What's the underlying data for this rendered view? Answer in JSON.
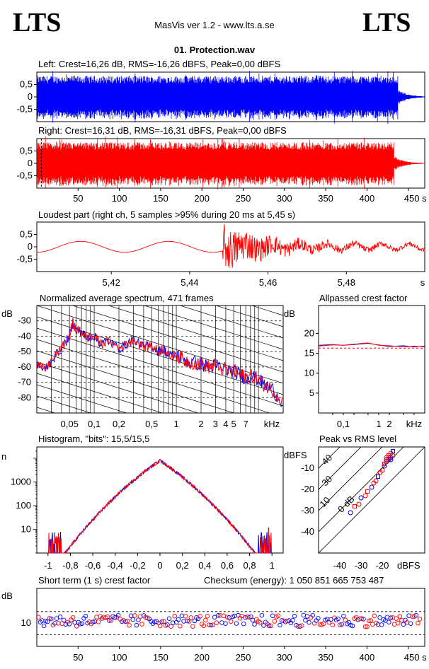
{
  "header": {
    "logo_left": "LTS",
    "logo_right": "LTS",
    "app_title": "MasVis ver 1.2 - www.lts.a.se",
    "file_title": "01. Protection.wav"
  },
  "colors": {
    "left": "#0000ff",
    "right": "#ff0000",
    "axis": "#000000"
  },
  "chart_data": [
    {
      "id": "left",
      "type": "area",
      "title": "Left: Crest=16,26 dB, RMS=-16,26 dBFS, Peak=0,00 dBFS",
      "yticks": [
        "0,5",
        "0",
        "-0,5"
      ],
      "ylim": [
        -1,
        1
      ],
      "xlim": [
        0,
        465
      ],
      "envelope": {
        "body_end_s": 433,
        "tail_end_s": 465,
        "amplitude": 0.8
      }
    },
    {
      "id": "right",
      "type": "area",
      "title": "Right: Crest=16,31 dB, RMS=-16,31 dBFS, Peak=0,00 dBFS",
      "yticks": [
        "0,5",
        "0",
        "-0,5"
      ],
      "xticks": [
        "50",
        "100",
        "150",
        "200",
        "250",
        "300",
        "350",
        "400",
        "450 s"
      ],
      "xtick_values": [
        50,
        100,
        150,
        200,
        250,
        300,
        350,
        400,
        450
      ],
      "ylim": [
        -1,
        1
      ],
      "xlim": [
        0,
        470
      ],
      "marker_s": 5.45
    },
    {
      "id": "loudest",
      "type": "line",
      "title": "Loudest part (right ch, 5 samples >95% during 20 ms at 5,45 s)",
      "yticks": [
        "0,5",
        "0",
        "-0,5"
      ],
      "xticks": [
        "5,42",
        "5,44",
        "5,46",
        "5,48",
        "s"
      ],
      "xtick_values": [
        5.42,
        5.44,
        5.46,
        5.48
      ],
      "xlim": [
        5.401,
        5.5
      ],
      "ylim": [
        -1,
        1
      ]
    },
    {
      "id": "spectrum",
      "type": "line",
      "title": "Normalized average spectrum, 471 frames",
      "ylabel": "dB",
      "yticks": [
        "-30",
        "-40",
        "-50",
        "-60",
        "-70",
        "-80"
      ],
      "ytick_values": [
        -30,
        -40,
        -50,
        -60,
        -70,
        -80
      ],
      "xticks": [
        "0,05",
        "0,1",
        "0,2",
        "0,5",
        "1",
        "2",
        "3",
        "4",
        "5",
        "7",
        "kHz"
      ],
      "xtick_values": [
        0.05,
        0.1,
        0.2,
        0.5,
        1,
        2,
        3,
        4,
        5,
        7
      ],
      "xlim_khz": [
        0.02,
        20
      ],
      "ylim": [
        -90,
        -20
      ],
      "points_khz_db": [
        [
          0.02,
          -58
        ],
        [
          0.025,
          -62
        ],
        [
          0.03,
          -56
        ],
        [
          0.04,
          -48
        ],
        [
          0.05,
          -40
        ],
        [
          0.055,
          -31
        ],
        [
          0.06,
          -36
        ],
        [
          0.07,
          -37
        ],
        [
          0.08,
          -41
        ],
        [
          0.1,
          -40
        ],
        [
          0.12,
          -45
        ],
        [
          0.15,
          -43
        ],
        [
          0.2,
          -48
        ],
        [
          0.25,
          -45
        ],
        [
          0.3,
          -42
        ],
        [
          0.4,
          -47
        ],
        [
          0.5,
          -46
        ],
        [
          0.6,
          -50
        ],
        [
          0.7,
          -48
        ],
        [
          0.8,
          -53
        ],
        [
          1,
          -52
        ],
        [
          1.2,
          -55
        ],
        [
          1.5,
          -57
        ],
        [
          2,
          -58
        ],
        [
          2.5,
          -60
        ],
        [
          3,
          -59
        ],
        [
          4,
          -62
        ],
        [
          5,
          -63
        ],
        [
          6,
          -65
        ],
        [
          7,
          -67
        ],
        [
          8,
          -66
        ],
        [
          10,
          -68
        ],
        [
          12,
          -72
        ],
        [
          15,
          -75
        ],
        [
          20,
          -83
        ]
      ]
    },
    {
      "id": "allpassed",
      "type": "line",
      "title": "Allpassed crest factor",
      "ylabel": "dB",
      "yticks": [
        "20",
        "15",
        "10",
        "5"
      ],
      "ytick_values": [
        20,
        15,
        10,
        5
      ],
      "xticks": [
        "0,1",
        "1",
        "2",
        "kHz"
      ],
      "xtick_values": [
        0.1,
        1,
        2
      ],
      "ylim": [
        0,
        27
      ],
      "reference_db": 16.3,
      "series": [
        {
          "x": [
            0.02,
            0.05,
            0.1,
            0.2,
            0.5,
            1,
            2,
            5,
            10,
            20
          ],
          "values": [
            17.0,
            17.2,
            17.0,
            17.2,
            17.5,
            17.1,
            16.7,
            16.9,
            16.6,
            16.8
          ]
        },
        {
          "x": [
            0.02,
            0.05,
            0.1,
            0.2,
            0.5,
            1,
            2,
            5,
            10,
            20
          ],
          "values": [
            16.8,
            17.1,
            17.0,
            17.3,
            17.6,
            17.0,
            16.9,
            16.6,
            16.8,
            16.6
          ]
        }
      ]
    },
    {
      "id": "histogram",
      "type": "line",
      "title": "Histogram, \"bits\": 15,5/15,5",
      "ylabel": "n",
      "yticks": [
        "1000",
        "100",
        "10"
      ],
      "ytick_values": [
        1000,
        100,
        10
      ],
      "xticks": [
        "-1",
        "-0,8",
        "-0,6",
        "-0,4",
        "-0,2",
        "0",
        "0,2",
        "0,4",
        "0,6",
        "0,8",
        "1"
      ],
      "xtick_values": [
        -1,
        -0.8,
        -0.6,
        -0.4,
        -0.2,
        0,
        0.2,
        0.4,
        0.6,
        0.8,
        1
      ],
      "xlim": [
        -1.1,
        1.1
      ],
      "yscale": "log",
      "ylim": [
        1,
        30000
      ],
      "center_peak": 8000
    },
    {
      "id": "peak_rms",
      "type": "scatter",
      "title": "Peak vs RMS level",
      "ylabel": "dBFS",
      "xlabel": "dBFS",
      "yticks": [
        "-10",
        "-20",
        "-30",
        "-40"
      ],
      "ytick_values": [
        -10,
        -20,
        -30,
        -40
      ],
      "xticks": [
        "-40",
        "-30",
        "-20"
      ],
      "xtick_values": [
        -40,
        -30,
        -20
      ],
      "xlim": [
        -50,
        0
      ],
      "ylim": [
        -50,
        0
      ],
      "diagonal_labels": [
        "40",
        "30",
        "10",
        "0 dB"
      ],
      "diagonal_offsets": [
        40,
        30,
        20,
        10,
        0
      ],
      "points": [
        [
          -35,
          -31
        ],
        [
          -33,
          -28
        ],
        [
          -31,
          -27
        ],
        [
          -30,
          -24
        ],
        [
          -28,
          -23
        ],
        [
          -27,
          -21
        ],
        [
          -25,
          -19
        ],
        [
          -24,
          -17
        ],
        [
          -23,
          -16
        ],
        [
          -22,
          -14
        ],
        [
          -21,
          -12
        ],
        [
          -20,
          -11
        ],
        [
          -19,
          -9
        ],
        [
          -19,
          -8
        ],
        [
          -18,
          -7
        ],
        [
          -18,
          -6
        ],
        [
          -17,
          -5
        ],
        [
          -17,
          -4
        ],
        [
          -16,
          -5
        ],
        [
          -16,
          -3
        ],
        [
          -15,
          -4
        ],
        [
          -15,
          -2
        ],
        [
          -17,
          -6
        ],
        [
          -18,
          -5
        ],
        [
          -16,
          -6
        ]
      ]
    },
    {
      "id": "short_term",
      "type": "scatter",
      "title": "Short term (1 s) crest factor",
      "checksum_label": "Checksum (energy):  1 050 851 665 753 487",
      "ylabel": "dB",
      "yticks": [
        "10"
      ],
      "ytick_values": [
        10
      ],
      "xticks": [
        "50",
        "100",
        "150",
        "200",
        "250",
        "300",
        "350",
        "400",
        "450 s"
      ],
      "xtick_values": [
        50,
        100,
        150,
        200,
        250,
        300,
        350,
        400,
        450
      ],
      "xlim": [
        0,
        470
      ],
      "ylim": [
        0,
        25
      ],
      "dashed_levels": [
        5,
        15
      ],
      "level_db": 11
    }
  ]
}
